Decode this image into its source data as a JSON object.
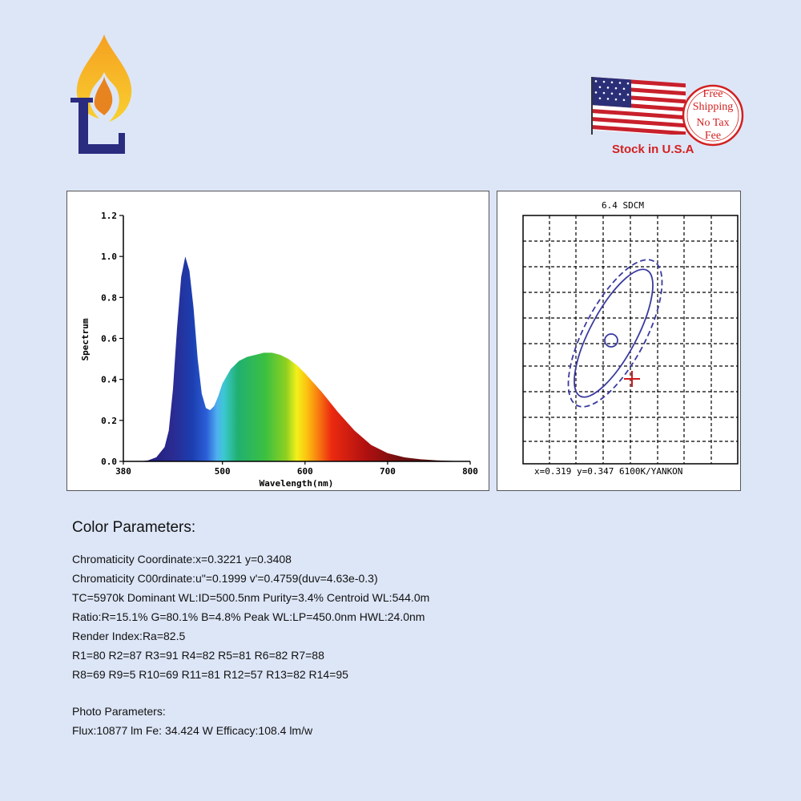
{
  "badge": {
    "line1": "Free",
    "line2": "Shipping",
    "line3": "No Tax",
    "line4": "Fee"
  },
  "stock_label": "Stock in U.S.A",
  "chart_data": [
    {
      "type": "area",
      "title": "",
      "xlabel": "Wavelength(nm)",
      "ylabel": "Spectrum",
      "xlim": [
        380,
        800
      ],
      "ylim": [
        0,
        1.2
      ],
      "x_ticks": [
        "380",
        "500",
        "600",
        "700",
        "800"
      ],
      "y_ticks": [
        "0.0",
        "0.2",
        "0.4",
        "0.6",
        "0.8",
        "1.0",
        "1.2"
      ],
      "fill": "spectral rainbow gradient",
      "series": [
        {
          "x": [
            380,
            400,
            410,
            420,
            430,
            435,
            440,
            445,
            450,
            455,
            460,
            465,
            470,
            475,
            480,
            485,
            490,
            495,
            500,
            510,
            520,
            530,
            540,
            550,
            560,
            570,
            580,
            590,
            600,
            620,
            640,
            660,
            680,
            700,
            720,
            740,
            760,
            780,
            800
          ],
          "y": [
            0,
            0,
            0.005,
            0.02,
            0.07,
            0.15,
            0.35,
            0.65,
            0.9,
            1.0,
            0.93,
            0.75,
            0.5,
            0.33,
            0.26,
            0.25,
            0.27,
            0.32,
            0.38,
            0.45,
            0.49,
            0.51,
            0.52,
            0.53,
            0.53,
            0.52,
            0.5,
            0.47,
            0.43,
            0.34,
            0.24,
            0.15,
            0.08,
            0.04,
            0.02,
            0.01,
            0.005,
            0.002,
            0
          ]
        }
      ]
    },
    {
      "type": "scatter",
      "title": "6.4 SDCM",
      "grid": true,
      "readout": "x=0.319 y=0.347 6100K/YANKON",
      "markers": [
        {
          "shape": "circle",
          "color": "#3a3aa0"
        },
        {
          "shape": "cross",
          "color": "#d01818"
        }
      ]
    }
  ],
  "params": {
    "heading": "Color Parameters:",
    "lines": [
      "Chromaticity Coordinate:x=0.3221 y=0.3408",
      "Chromaticity C00rdinate:u\"=0.1999 v'=0.4759(duv=4.63e-0.3)",
      "TC=5970k Dominant WL:ID=500.5nm Purity=3.4% Centroid WL:544.0m",
      "Ratio:R=15.1% G=80.1% B=4.8% Peak WL:LP=450.0nm HWL:24.0nm",
      "Render Index:Ra=82.5",
      "R1=80 R2=87 R3=91 R4=82 R5=81 R6=82 R7=88",
      "R8=69 R9=5 R10=69 R11=81 R12=57 R13=82 R14=95"
    ],
    "photo_heading": "Photo Parameters:",
    "photo_line": "Flux:10877 lm Fe: 34.424 W Efficacy:108.4 lm/w"
  },
  "colors": {
    "background": "#dde6f7",
    "accent_red": "#d32020",
    "chart_blue": "#3a3aa0"
  }
}
